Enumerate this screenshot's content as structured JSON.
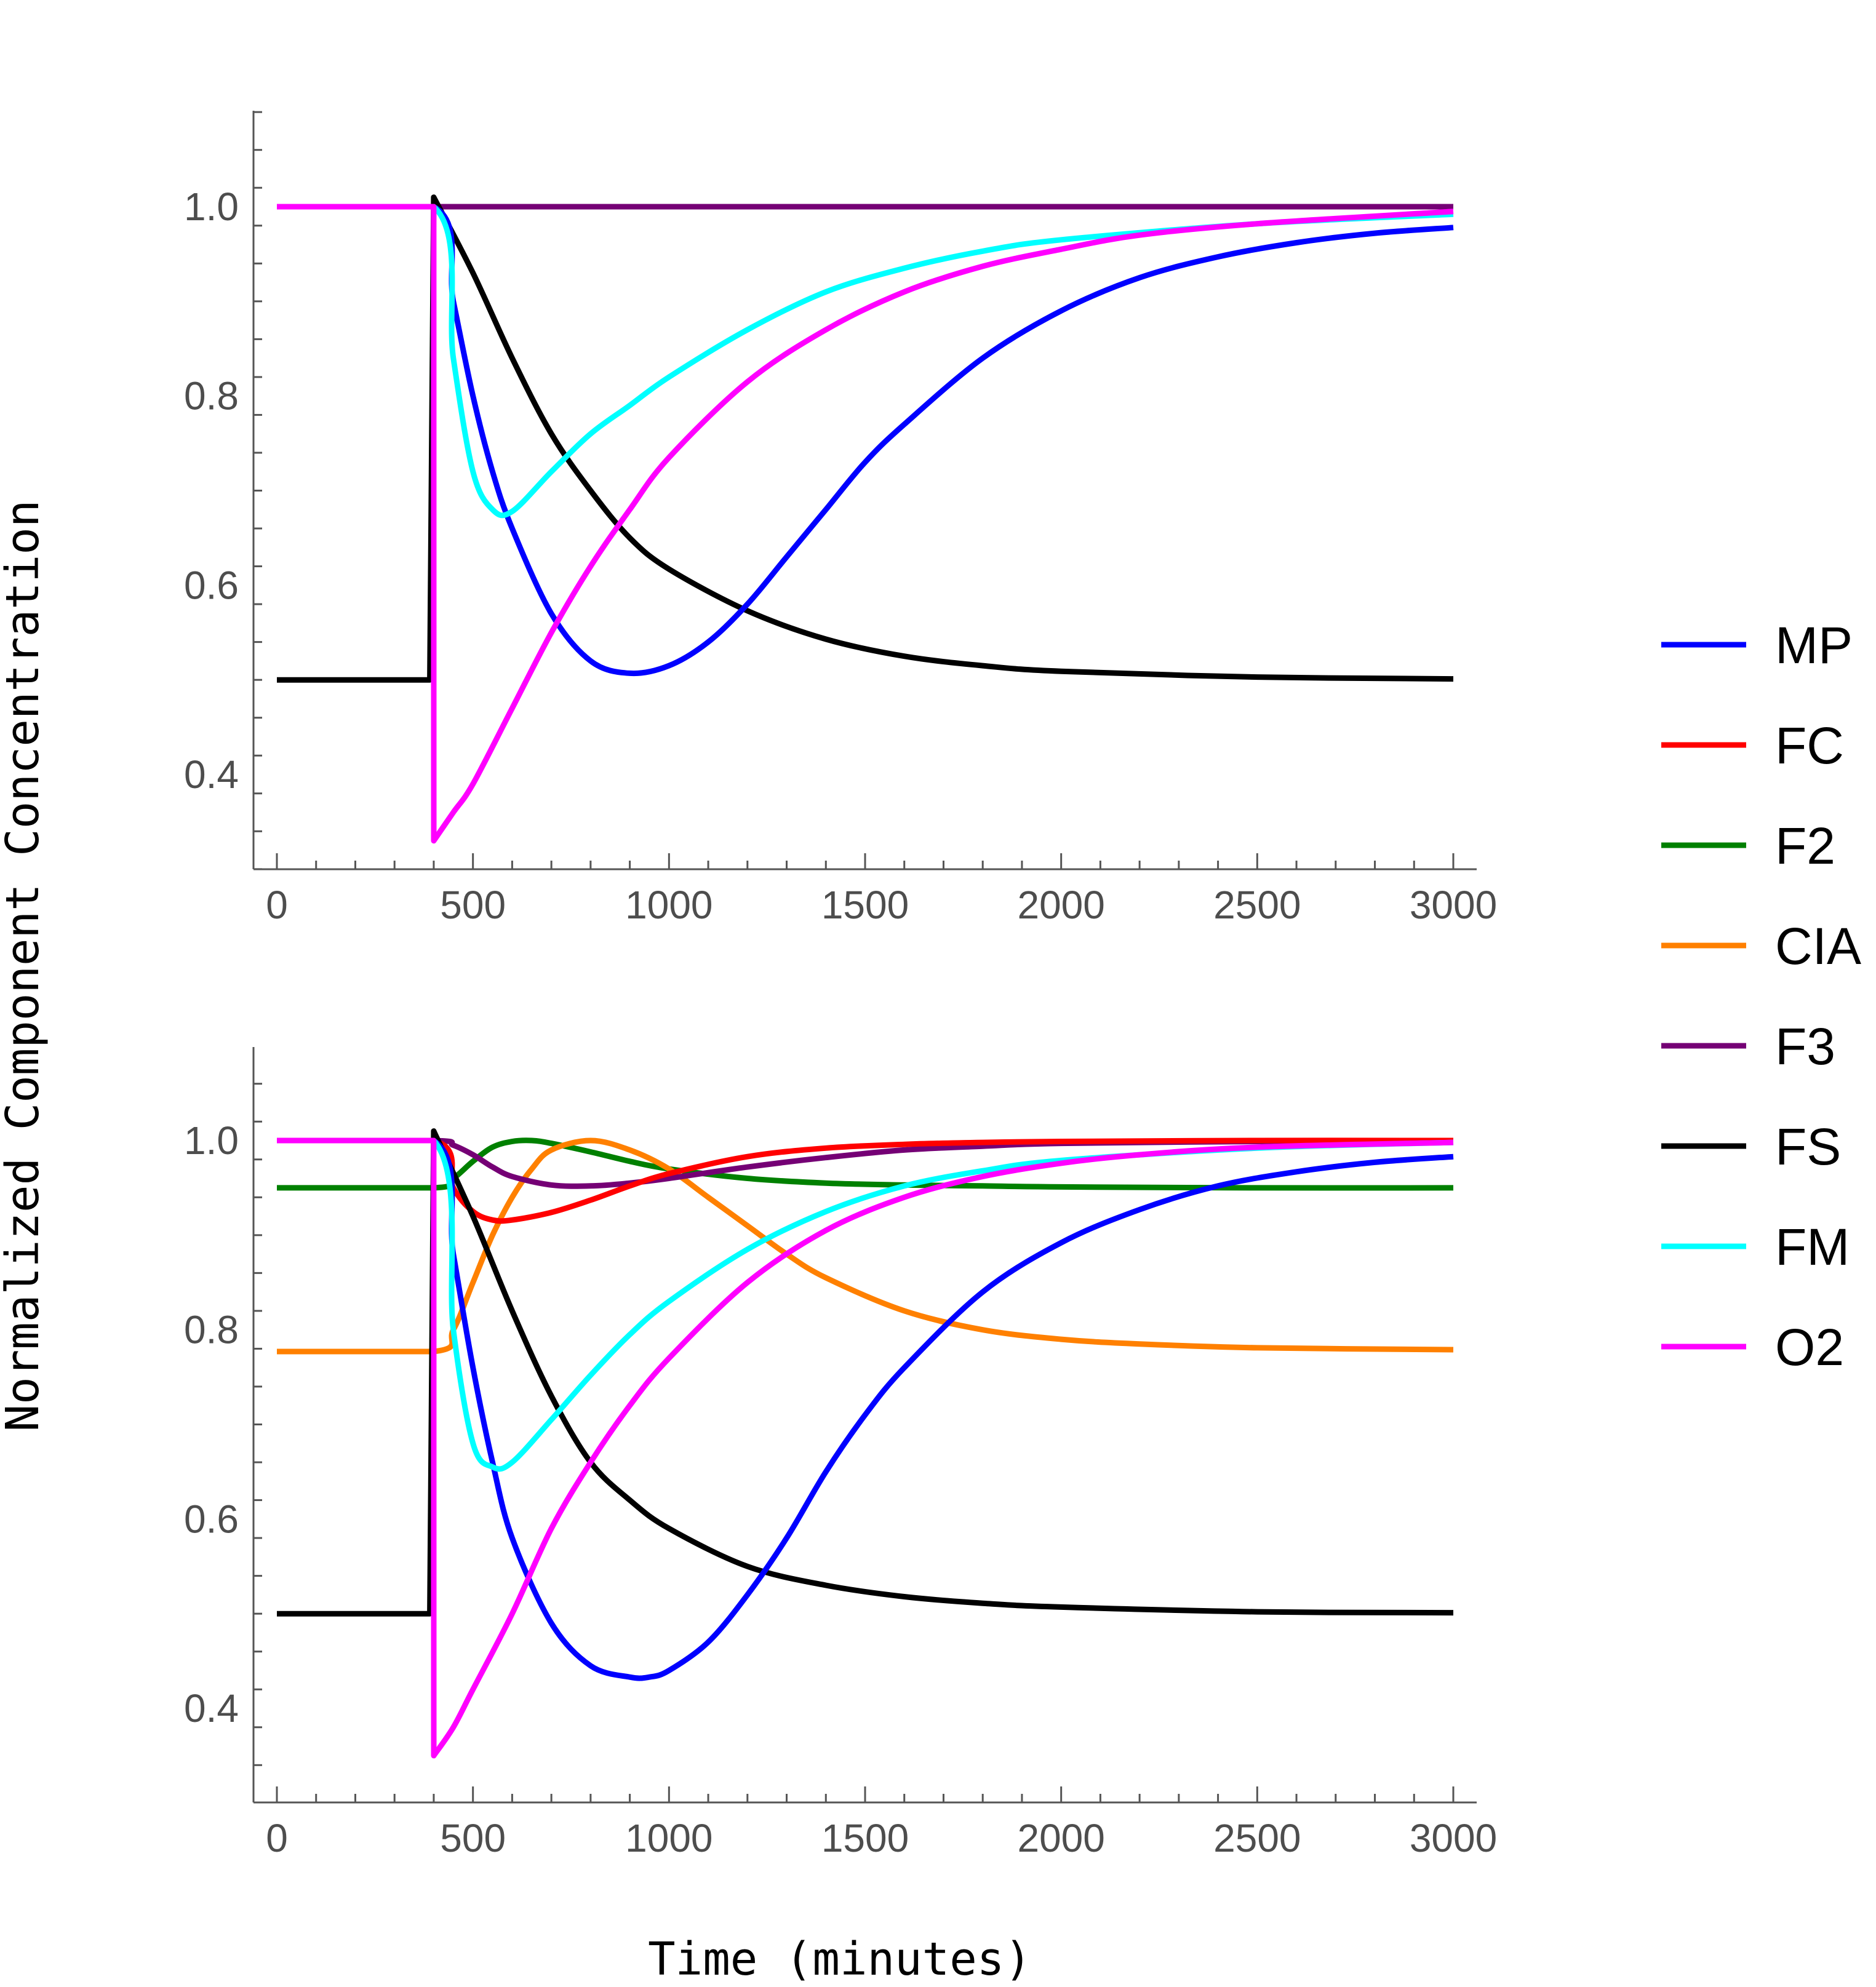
{
  "chart_data": [
    {
      "type": "line",
      "title": "",
      "xlabel": "Time (minutes)",
      "ylabel": "Normalized Component Concentration",
      "xlim": [
        0,
        3000
      ],
      "ylim": [
        0.3,
        1.1
      ],
      "x_ticks": [
        0,
        500,
        1000,
        1500,
        2000,
        2500,
        3000
      ],
      "x_tick_labels": [
        "0",
        "500",
        "1000",
        "1500",
        "2000",
        "2500",
        "3000"
      ],
      "y_ticks": [
        0.4,
        0.6,
        0.8,
        1.0
      ],
      "y_tick_labels": [
        "0.4",
        "0.6",
        "0.8",
        "1.0"
      ],
      "grid": false,
      "legend": "right",
      "series": [
        {
          "name": "F3",
          "color": "#750075",
          "x": [
            0,
            400,
            3000
          ],
          "y": [
            1.0,
            1.0,
            1.0
          ]
        },
        {
          "name": "FS",
          "color": "#000000",
          "x": [
            0,
            390,
            400,
            500,
            600,
            700,
            800,
            900,
            1000,
            1200,
            1400,
            1600,
            1800,
            2000,
            2500,
            3000
          ],
          "y": [
            0.5,
            0.5,
            1.01,
            0.93,
            0.84,
            0.76,
            0.7,
            0.65,
            0.617,
            0.573,
            0.543,
            0.525,
            0.515,
            0.509,
            0.503,
            0.501
          ]
        },
        {
          "name": "MP",
          "color": "#0000ff",
          "x": [
            0,
            400,
            450,
            500,
            550,
            600,
            700,
            800,
            900,
            1000,
            1100,
            1200,
            1300,
            1400,
            1500,
            1600,
            1800,
            2000,
            2200,
            2400,
            2600,
            2800,
            3000
          ],
          "y": [
            1.0,
            1.0,
            0.9,
            0.8,
            0.72,
            0.66,
            0.57,
            0.52,
            0.507,
            0.515,
            0.54,
            0.58,
            0.63,
            0.68,
            0.73,
            0.77,
            0.84,
            0.89,
            0.925,
            0.947,
            0.962,
            0.972,
            0.978
          ]
        },
        {
          "name": "FM",
          "color": "#00ffff",
          "x": [
            0,
            400,
            450,
            500,
            550,
            600,
            700,
            800,
            900,
            1000,
            1200,
            1400,
            1600,
            1800,
            2000,
            2500,
            3000
          ],
          "y": [
            1.0,
            1.0,
            0.84,
            0.72,
            0.68,
            0.678,
            0.72,
            0.76,
            0.79,
            0.82,
            0.87,
            0.91,
            0.935,
            0.953,
            0.965,
            0.982,
            0.992
          ]
        },
        {
          "name": "O2",
          "color": "#ff00ff",
          "x": [
            0,
            400,
            400.1,
            450,
            500,
            600,
            700,
            800,
            900,
            1000,
            1200,
            1400,
            1600,
            1800,
            2000,
            2200,
            2500,
            3000
          ],
          "y": [
            1.0,
            1.0,
            0.33,
            0.36,
            0.39,
            0.47,
            0.55,
            0.62,
            0.68,
            0.735,
            0.815,
            0.87,
            0.91,
            0.937,
            0.955,
            0.97,
            0.982,
            0.995
          ]
        }
      ]
    },
    {
      "type": "line",
      "title": "",
      "xlabel": "Time (minutes)",
      "ylabel": "Normalized Component Concentration",
      "xlim": [
        0,
        3000
      ],
      "ylim": [
        0.3,
        1.1
      ],
      "x_ticks": [
        0,
        500,
        1000,
        1500,
        2000,
        2500,
        3000
      ],
      "x_tick_labels": [
        "0",
        "500",
        "1000",
        "1500",
        "2000",
        "2500",
        "3000"
      ],
      "y_ticks": [
        0.4,
        0.6,
        0.8,
        1.0
      ],
      "y_tick_labels": [
        "0.4",
        "0.6",
        "0.8",
        "1.0"
      ],
      "grid": false,
      "legend": "right",
      "series": [
        {
          "name": "F2",
          "color": "#008000",
          "x": [
            0,
            400,
            450,
            500,
            550,
            600,
            650,
            700,
            800,
            900,
            1000,
            1200,
            1400,
            1600,
            1800,
            2000,
            2500,
            3000
          ],
          "y": [
            0.95,
            0.95,
            0.96,
            0.978,
            0.993,
            0.999,
            1.0,
            0.997,
            0.988,
            0.978,
            0.97,
            0.96,
            0.955,
            0.953,
            0.952,
            0.951,
            0.95,
            0.95
          ]
        },
        {
          "name": "CIA",
          "color": "#ff8000",
          "x": [
            0,
            400,
            450,
            500,
            550,
            600,
            650,
            700,
            800,
            900,
            1000,
            1100,
            1200,
            1300,
            1400,
            1600,
            1800,
            2000,
            2200,
            2500,
            3000
          ],
          "y": [
            0.777,
            0.777,
            0.8,
            0.85,
            0.9,
            0.94,
            0.97,
            0.99,
            1.0,
            0.99,
            0.97,
            0.94,
            0.91,
            0.88,
            0.855,
            0.82,
            0.8,
            0.79,
            0.785,
            0.781,
            0.779
          ]
        },
        {
          "name": "F3",
          "color": "#750075",
          "x": [
            0,
            400,
            450,
            500,
            550,
            600,
            700,
            800,
            900,
            1000,
            1200,
            1400,
            1600,
            1800,
            2000,
            2500,
            3000
          ],
          "y": [
            1.0,
            1.0,
            0.995,
            0.985,
            0.972,
            0.962,
            0.953,
            0.952,
            0.955,
            0.96,
            0.972,
            0.982,
            0.99,
            0.994,
            0.997,
            0.999,
            1.0
          ]
        },
        {
          "name": "FC",
          "color": "#ff0000",
          "x": [
            0,
            400,
            450,
            500,
            550,
            600,
            700,
            800,
            900,
            1000,
            1200,
            1400,
            1600,
            1800,
            2000,
            2500,
            3000
          ],
          "y": [
            1.0,
            1.0,
            0.95,
            0.925,
            0.916,
            0.916,
            0.924,
            0.937,
            0.952,
            0.965,
            0.983,
            0.992,
            0.996,
            0.998,
            0.999,
            1.0,
            1.0
          ]
        },
        {
          "name": "FS",
          "color": "#000000",
          "x": [
            0,
            390,
            400,
            500,
            600,
            700,
            800,
            900,
            1000,
            1200,
            1400,
            1600,
            1800,
            2000,
            2500,
            3000
          ],
          "y": [
            0.5,
            0.5,
            1.01,
            0.92,
            0.82,
            0.73,
            0.66,
            0.62,
            0.59,
            0.55,
            0.53,
            0.518,
            0.511,
            0.507,
            0.502,
            0.501
          ]
        },
        {
          "name": "MP",
          "color": "#0000ff",
          "x": [
            0,
            400,
            450,
            500,
            550,
            600,
            700,
            800,
            900,
            950,
            1000,
            1100,
            1200,
            1300,
            1400,
            1500,
            1600,
            1800,
            2000,
            2200,
            2400,
            2600,
            2800,
            3000
          ],
          "y": [
            1.0,
            1.0,
            0.88,
            0.76,
            0.66,
            0.58,
            0.49,
            0.445,
            0.433,
            0.433,
            0.44,
            0.47,
            0.52,
            0.58,
            0.65,
            0.71,
            0.76,
            0.84,
            0.892,
            0.927,
            0.952,
            0.967,
            0.977,
            0.983
          ]
        },
        {
          "name": "FM",
          "color": "#00ffff",
          "x": [
            0,
            400,
            450,
            500,
            550,
            600,
            700,
            800,
            900,
            1000,
            1200,
            1400,
            1600,
            1800,
            2000,
            2500,
            3000
          ],
          "y": [
            1.0,
            1.0,
            0.8,
            0.68,
            0.655,
            0.66,
            0.705,
            0.752,
            0.795,
            0.83,
            0.885,
            0.925,
            0.952,
            0.968,
            0.979,
            0.992,
            0.998
          ]
        },
        {
          "name": "O2",
          "color": "#ff00ff",
          "x": [
            0,
            400,
            400.1,
            450,
            500,
            600,
            700,
            800,
            900,
            1000,
            1200,
            1400,
            1600,
            1800,
            2000,
            2200,
            2500,
            3000
          ],
          "y": [
            1.0,
            1.0,
            0.35,
            0.38,
            0.42,
            0.5,
            0.59,
            0.66,
            0.72,
            0.77,
            0.85,
            0.905,
            0.94,
            0.962,
            0.976,
            0.985,
            0.993,
            0.998
          ]
        }
      ]
    }
  ],
  "legend_items": [
    {
      "name": "MP",
      "color": "#0000ff"
    },
    {
      "name": "FC",
      "color": "#ff0000"
    },
    {
      "name": "F2",
      "color": "#008000"
    },
    {
      "name": "CIA",
      "color": "#ff8000"
    },
    {
      "name": "F3",
      "color": "#750075"
    },
    {
      "name": "FS",
      "color": "#000000"
    },
    {
      "name": "FM",
      "color": "#00ffff"
    },
    {
      "name": "O2",
      "color": "#ff00ff"
    }
  ],
  "axis_titles": {
    "x": "Time (minutes)",
    "y": "Normalized Component Concentration"
  }
}
